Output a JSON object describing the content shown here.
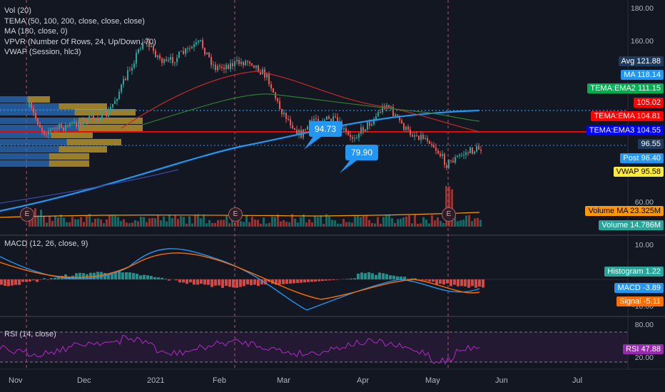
{
  "legend": {
    "vol": "Vol (20)",
    "tema": "TEMA (50, 100, 200, close, close, close)",
    "ma": "MA (180, close, 0)",
    "vpvr": "VPVR (Number Of Rows, 24, Up/Down, 70)",
    "vwap": "VWAP (Session, hlc3)"
  },
  "price_axis": {
    "ticks": [
      "180.00",
      "160.00",
      "60.00"
    ]
  },
  "price_tags": [
    {
      "label": "Avg",
      "value": "121.88",
      "bg": "#1e3a5f",
      "fg": "#ffffff"
    },
    {
      "label": "MA",
      "value": "118.14",
      "bg": "#2196f3",
      "fg": "#ffffff"
    },
    {
      "label": "TEMA:EMA2",
      "value": "111.15",
      "bg": "#00b050",
      "fg": "#ffffff"
    },
    {
      "label": "",
      "value": "105.02",
      "bg": "#ff0000",
      "fg": "#ffffff"
    },
    {
      "label": "TEMA:EMA",
      "value": "104.81",
      "bg": "#ff0000",
      "fg": "#ffffff"
    },
    {
      "label": "TEMA:EMA3",
      "value": "104.55",
      "bg": "#0000ff",
      "fg": "#ffffff"
    },
    {
      "label": "",
      "value": "96.55",
      "bg": "#1e3a5f",
      "fg": "#ffffff"
    },
    {
      "label": "Post",
      "value": "96.40",
      "bg": "#2196f3",
      "fg": "#ffffff"
    },
    {
      "label": "VWAP",
      "value": "95.58",
      "bg": "#ffeb3b",
      "fg": "#000000"
    },
    {
      "label": "Volume MA",
      "value": "23.325M",
      "bg": "#ff9800",
      "fg": "#000000"
    },
    {
      "label": "Volume",
      "value": "14.786M",
      "bg": "#26a69a",
      "fg": "#ffffff"
    }
  ],
  "callouts": {
    "high": "94.73",
    "low": "79.90"
  },
  "earnings_marker": "E",
  "macd": {
    "title": "MACD (12, 26, close, 9)",
    "ticks": [
      "10.00",
      "-10.00"
    ],
    "tags": [
      {
        "label": "Histogram",
        "value": "1.22",
        "bg": "#26a69a",
        "fg": "#ffffff"
      },
      {
        "label": "MACD",
        "value": "-3.89",
        "bg": "#2196f3",
        "fg": "#ffffff"
      },
      {
        "label": "Signal",
        "value": "-5.11",
        "bg": "#ff6d00",
        "fg": "#ffffff"
      }
    ]
  },
  "rsi": {
    "title": "RSI (14, close)",
    "ticks": [
      "80.00",
      "20.00"
    ],
    "tag": {
      "label": "RSI",
      "value": "47.88",
      "bg": "#9c27b0",
      "fg": "#ffffff"
    }
  },
  "x_axis": [
    "Nov",
    "Dec",
    "2021",
    "Feb",
    "Mar",
    "Apr",
    "May",
    "Jun",
    "Jul"
  ],
  "colors": {
    "up": "#26a69a",
    "down": "#ef5350",
    "ma": "#2196f3",
    "tema_red": "#ff0000",
    "rsi": "#9c27b0"
  },
  "chart_data": {
    "type": "candlestick",
    "price_series": {
      "name": "Price",
      "x": [
        "Nov",
        "Dec",
        "2021",
        "Feb",
        "Mar",
        "Apr",
        "May"
      ],
      "values": [
        110,
        120,
        165,
        150,
        100,
        110,
        96.55
      ]
    },
    "levels": {
      "avg": 121.88,
      "ma": 118.14,
      "tema_ema": 104.81,
      "post": 96.4,
      "vwap": 95.58
    },
    "annotations": [
      "94.73",
      "79.90"
    ],
    "macd_last": {
      "histogram": 1.22,
      "macd": -3.89,
      "signal": -5.11
    },
    "rsi_last": 47.88
  }
}
